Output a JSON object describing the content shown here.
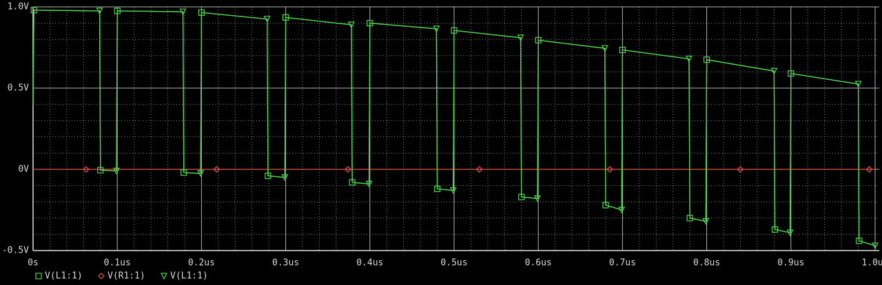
{
  "chart_data": {
    "type": "line",
    "xlim": [
      0,
      1.0
    ],
    "ylim": [
      -0.5,
      1.0
    ],
    "xticks": [
      {
        "value": 0,
        "label": "0s"
      },
      {
        "value": 0.1,
        "label": "0.1us"
      },
      {
        "value": 0.2,
        "label": "0.2us"
      },
      {
        "value": 0.3,
        "label": "0.3us"
      },
      {
        "value": 0.4,
        "label": "0.4us"
      },
      {
        "value": 0.5,
        "label": "0.5us"
      },
      {
        "value": 0.6,
        "label": "0.6us"
      },
      {
        "value": 0.7,
        "label": "0.7us"
      },
      {
        "value": 0.8,
        "label": "0.8us"
      },
      {
        "value": 0.9,
        "label": "0.9us"
      },
      {
        "value": 1.0,
        "label": "1.0us"
      }
    ],
    "yticks": [
      {
        "value": 1.0,
        "label": "1.0V"
      },
      {
        "value": 0.5,
        "label": "0.5V"
      },
      {
        "value": 0,
        "label": "0V"
      },
      {
        "value": -0.5,
        "label": "-0.5V"
      }
    ],
    "grid": true,
    "minor_grid": true,
    "series": [
      {
        "name": "V(L1:1)",
        "color": "#4fd64f",
        "marker": "square",
        "x": [
          0,
          0.001,
          0.079,
          0.08,
          0.099,
          0.1,
          0.178,
          0.179,
          0.199,
          0.2,
          0.278,
          0.279,
          0.299,
          0.3,
          0.378,
          0.379,
          0.399,
          0.4,
          0.479,
          0.48,
          0.499,
          0.5,
          0.579,
          0.58,
          0.599,
          0.6,
          0.679,
          0.68,
          0.699,
          0.7,
          0.779,
          0.78,
          0.799,
          0.8,
          0.88,
          0.881,
          0.899,
          0.9,
          0.98,
          0.981,
          1.0
        ],
        "values": [
          0.4,
          0.98,
          0.975,
          -0.005,
          -0.01,
          0.975,
          0.97,
          -0.02,
          -0.025,
          0.965,
          0.925,
          -0.04,
          -0.05,
          0.935,
          0.89,
          -0.08,
          -0.09,
          0.9,
          0.865,
          -0.12,
          -0.13,
          0.855,
          0.81,
          -0.17,
          -0.18,
          0.795,
          0.745,
          -0.22,
          -0.25,
          0.735,
          0.68,
          -0.3,
          -0.32,
          0.675,
          0.605,
          -0.37,
          -0.39,
          0.59,
          0.525,
          -0.44,
          -0.47
        ]
      },
      {
        "name": "V(R1:1)",
        "color": "#e0584a",
        "marker": "diamond",
        "x": [
          0,
          0.063,
          0.218,
          0.374,
          0.53,
          0.685,
          0.84,
          0.993,
          1.0
        ],
        "values": [
          0,
          0,
          0,
          0,
          0,
          0,
          0,
          0,
          0
        ]
      },
      {
        "name": "V(L1:1)",
        "color": "#4fd64f",
        "marker": "triangle",
        "x": [
          0,
          0.001,
          0.079,
          0.08,
          0.099,
          0.1,
          0.178,
          0.179,
          0.199,
          0.2,
          0.278,
          0.279,
          0.299,
          0.3,
          0.378,
          0.379,
          0.399,
          0.4,
          0.479,
          0.48,
          0.499,
          0.5,
          0.579,
          0.58,
          0.599,
          0.6,
          0.679,
          0.68,
          0.699,
          0.7,
          0.779,
          0.78,
          0.799,
          0.8,
          0.88,
          0.881,
          0.899,
          0.9,
          0.98,
          0.981,
          1.0
        ],
        "values": [
          0.4,
          0.98,
          0.975,
          -0.005,
          -0.01,
          0.975,
          0.97,
          -0.02,
          -0.025,
          0.965,
          0.925,
          -0.04,
          -0.05,
          0.935,
          0.89,
          -0.08,
          -0.09,
          0.9,
          0.865,
          -0.12,
          -0.13,
          0.855,
          0.81,
          -0.17,
          -0.18,
          0.795,
          0.745,
          -0.22,
          -0.25,
          0.735,
          0.68,
          -0.3,
          -0.32,
          0.675,
          0.605,
          -0.37,
          -0.39,
          0.59,
          0.525,
          -0.44,
          -0.47
        ]
      }
    ]
  }
}
